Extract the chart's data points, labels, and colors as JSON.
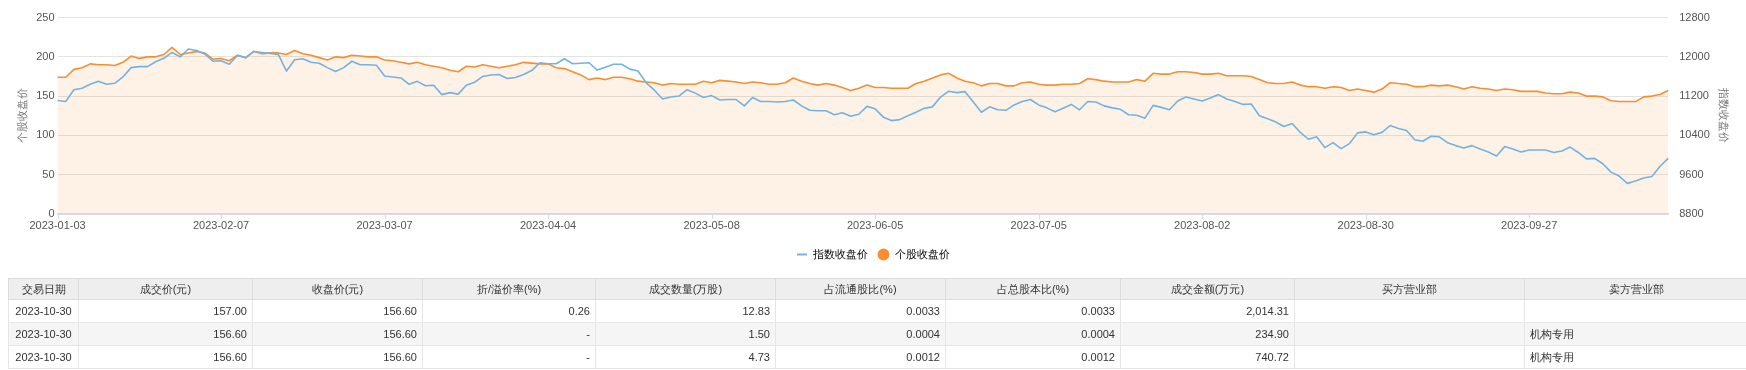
{
  "chart_data": [
    {
      "type": "line",
      "categories": [
        "2023-01-03",
        null,
        null,
        null,
        null,
        null,
        null,
        null,
        null,
        null,
        null,
        null,
        null,
        null,
        null,
        null,
        null,
        null,
        null,
        null,
        "2023-02-07",
        null,
        null,
        null,
        null,
        null,
        null,
        null,
        null,
        null,
        null,
        null,
        null,
        null,
        null,
        null,
        null,
        null,
        null,
        null,
        "2023-03-07",
        null,
        null,
        null,
        null,
        null,
        null,
        null,
        null,
        null,
        null,
        null,
        null,
        null,
        null,
        null,
        null,
        null,
        null,
        null,
        "2023-04-04",
        null,
        null,
        null,
        null,
        null,
        null,
        null,
        null,
        null,
        null,
        null,
        null,
        null,
        null,
        null,
        null,
        null,
        null,
        null,
        "2023-05-08",
        null,
        null,
        null,
        null,
        null,
        null,
        null,
        null,
        null,
        null,
        null,
        null,
        null,
        null,
        null,
        null,
        null,
        null,
        null,
        "2023-06-05",
        null,
        null,
        null,
        null,
        null,
        null,
        null,
        null,
        null,
        null,
        null,
        null,
        null,
        null,
        null,
        null,
        null,
        null,
        null,
        "2023-07-05",
        null,
        null,
        null,
        null,
        null,
        null,
        null,
        null,
        null,
        null,
        null,
        null,
        null,
        null,
        null,
        null,
        null,
        null,
        null,
        "2023-08-02",
        null,
        null,
        null,
        null,
        null,
        null,
        null,
        null,
        null,
        null,
        null,
        null,
        null,
        null,
        null,
        null,
        null,
        null,
        null,
        "2023-08-30",
        null,
        null,
        null,
        null,
        null,
        null,
        null,
        null,
        null,
        null,
        null,
        null,
        null,
        null,
        null,
        null,
        null,
        null,
        null,
        "2023-09-27",
        null,
        null,
        null,
        null,
        null,
        null,
        null,
        null,
        null,
        null,
        null,
        null,
        null,
        null,
        null,
        null,
        null
      ],
      "series": [
        {
          "name": "指数收盘价",
          "type": "line",
          "axis": "y2",
          "color": "#73b3e3",
          "values": [
            11110,
            11090,
            11330,
            11360,
            11440,
            11500,
            11440,
            11460,
            11590,
            11780,
            11800,
            11800,
            11900,
            11970,
            12090,
            12000,
            12160,
            12130,
            12060,
            11910,
            11920,
            11850,
            12030,
            11980,
            12110,
            12090,
            12070,
            12050,
            11710,
            11940,
            11960,
            11890,
            11870,
            11780,
            11700,
            11780,
            11910,
            11840,
            11840,
            11830,
            11610,
            11590,
            11570,
            11440,
            11500,
            11410,
            11420,
            11230,
            11270,
            11240,
            11420,
            11480,
            11600,
            11630,
            11640,
            11560,
            11580,
            11640,
            11720,
            11880,
            11860,
            11860,
            11960,
            11860,
            11870,
            11880,
            11730,
            11790,
            11850,
            11850,
            11750,
            11710,
            11470,
            11320,
            11140,
            11180,
            11200,
            11330,
            11260,
            11170,
            11210,
            11120,
            11130,
            11130,
            11000,
            11170,
            11090,
            11090,
            11080,
            11090,
            11120,
            11000,
            10910,
            10900,
            10900,
            10820,
            10860,
            10790,
            10830,
            10990,
            10940,
            10770,
            10700,
            10720,
            10800,
            10870,
            10950,
            10980,
            11180,
            11300,
            11270,
            11290,
            11080,
            10870,
            10980,
            10920,
            10910,
            11020,
            11090,
            11130,
            11020,
            10960,
            10880,
            10950,
            11030,
            10920,
            11090,
            11080,
            11000,
            10960,
            10930,
            10820,
            10810,
            10750,
            11010,
            10970,
            10920,
            11100,
            11180,
            11140,
            11100,
            11160,
            11230,
            11140,
            11090,
            11030,
            11040,
            10800,
            10740,
            10670,
            10580,
            10640,
            10460,
            10320,
            10370,
            10150,
            10250,
            10130,
            10230,
            10450,
            10470,
            10410,
            10460,
            10600,
            10540,
            10500,
            10310,
            10280,
            10380,
            10370,
            10250,
            10190,
            10140,
            10190,
            10120,
            10060,
            9980,
            10170,
            10120,
            10060,
            10100,
            10100,
            10100,
            10050,
            10080,
            10160,
            10050,
            9920,
            9930,
            9820,
            9650,
            9570,
            9420,
            9470,
            9530,
            9560,
            9770,
            9930
          ]
        },
        {
          "name": "个股收盘价",
          "type": "area",
          "color": "#f98e2f",
          "values": [
            174,
            174,
            184,
            186,
            191,
            190,
            190,
            189,
            193,
            201,
            198,
            200,
            200,
            203,
            212,
            203,
            205,
            207,
            205,
            197,
            198,
            195,
            202,
            199,
            207,
            204,
            205,
            205,
            203,
            208,
            204,
            202,
            199,
            196,
            200,
            199,
            202,
            201,
            200,
            200,
            196,
            195,
            193,
            191,
            193,
            190,
            188,
            186,
            183,
            181,
            188,
            187,
            190,
            188,
            186,
            188,
            190,
            193,
            192,
            191,
            191,
            186,
            185,
            181,
            177,
            171,
            173,
            171,
            174,
            174,
            172,
            169,
            168,
            167,
            164,
            166,
            165,
            165,
            165,
            169,
            167,
            170,
            169,
            168,
            166,
            168,
            167,
            165,
            165,
            167,
            173,
            169,
            166,
            164,
            166,
            164,
            161,
            157,
            160,
            164,
            161,
            161,
            160,
            160,
            160,
            166,
            169,
            173,
            177,
            179,
            173,
            169,
            167,
            163,
            166,
            166,
            163,
            163,
            167,
            168,
            165,
            164,
            164,
            165,
            165,
            166,
            172,
            171,
            169,
            168,
            168,
            168,
            171,
            169,
            179,
            178,
            178,
            181,
            181,
            180,
            178,
            178,
            179,
            176,
            176,
            176,
            175,
            171,
            167,
            166,
            166,
            168,
            164,
            162,
            162,
            160,
            162,
            161,
            157,
            159,
            157,
            155,
            159,
            167,
            166,
            165,
            162,
            162,
            164,
            163,
            164,
            162,
            159,
            162,
            160,
            159,
            157,
            159,
            158,
            156,
            156,
            156,
            154,
            153,
            153,
            155,
            154,
            150,
            150,
            149,
            144,
            143,
            143,
            143,
            149,
            150,
            152,
            157
          ]
        }
      ],
      "ylabel": "个股收盘价",
      "y2label": "指数收盘价",
      "ylim": [
        0,
        250
      ],
      "yticks": [
        0,
        50,
        100,
        150,
        200,
        250
      ],
      "y2lim": [
        8800,
        12800
      ],
      "y2ticks": [
        8800,
        9600,
        10400,
        11200,
        12000,
        12800
      ],
      "grid": "y",
      "legend": "bottom",
      "marker": "none"
    },
    {
      "type": "other",
      "categories": [
        "交易日期",
        "成交价(元)",
        "收盘价(元)",
        "折/溢价率(%)",
        "成交数量(万股)",
        "占流通股比(%)",
        "占总股本比(%)",
        "成交金额(万元)",
        "买方营业部",
        "卖方营业部"
      ],
      "cell_labels": [
        [
          "2023-10-30",
          "157.00",
          "156.60",
          "0.26",
          "12.83",
          "0.0033",
          "0.0033",
          "2,014.31",
          null,
          null
        ],
        [
          "2023-10-30",
          "156.60",
          "156.60",
          "-",
          "1.50",
          "0.0004",
          "0.0004",
          "234.90",
          null,
          "机构专用"
        ],
        [
          "2023-10-30",
          "156.60",
          "156.60",
          "-",
          "4.73",
          "0.0012",
          "0.0012",
          "740.72",
          null,
          "机构专用"
        ]
      ]
    }
  ]
}
